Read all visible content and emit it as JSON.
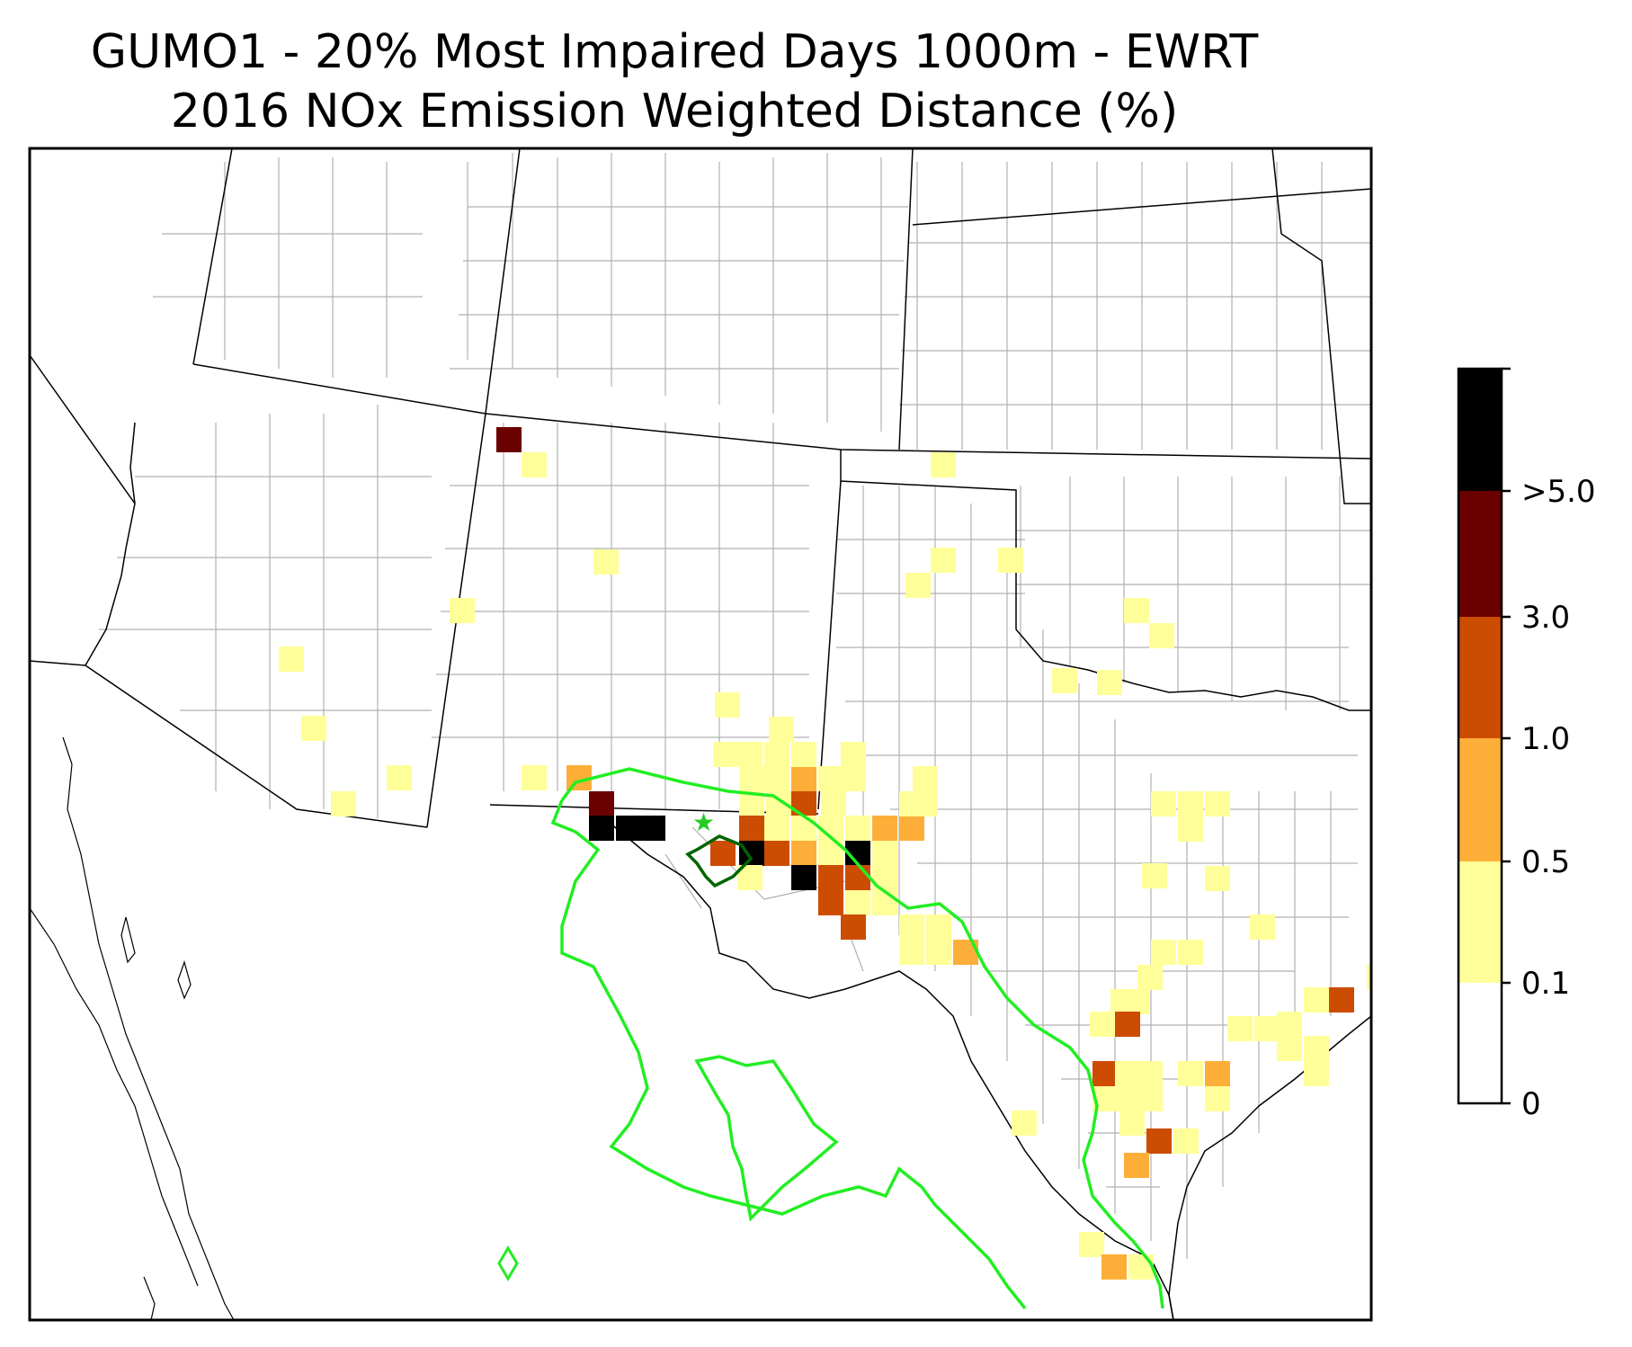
{
  "title_line1": "GUMO1 - 20% Most Impaired Days 1000m - EWRT",
  "title_line2": "2016 NOx Emission Weighted Distance (%)",
  "colorbar": {
    "tick_labels": [
      "0",
      "0.1",
      "0.5",
      "1.0",
      "3.0",
      ">5.0"
    ],
    "bin_colors": [
      "#ffffff",
      "#ffff99",
      "#fdae38",
      "#cc4c02",
      "#6b0000",
      "#000000"
    ],
    "frame_color": "#000000"
  },
  "colors": {
    "state_border": "#000000",
    "county_border": "#b0b0b0",
    "coastline": "#000000",
    "contour_outer": "#22ee22",
    "contour_inner": "#006400",
    "site_marker": "#22cc22"
  },
  "site_marker_icon": "star-icon"
}
